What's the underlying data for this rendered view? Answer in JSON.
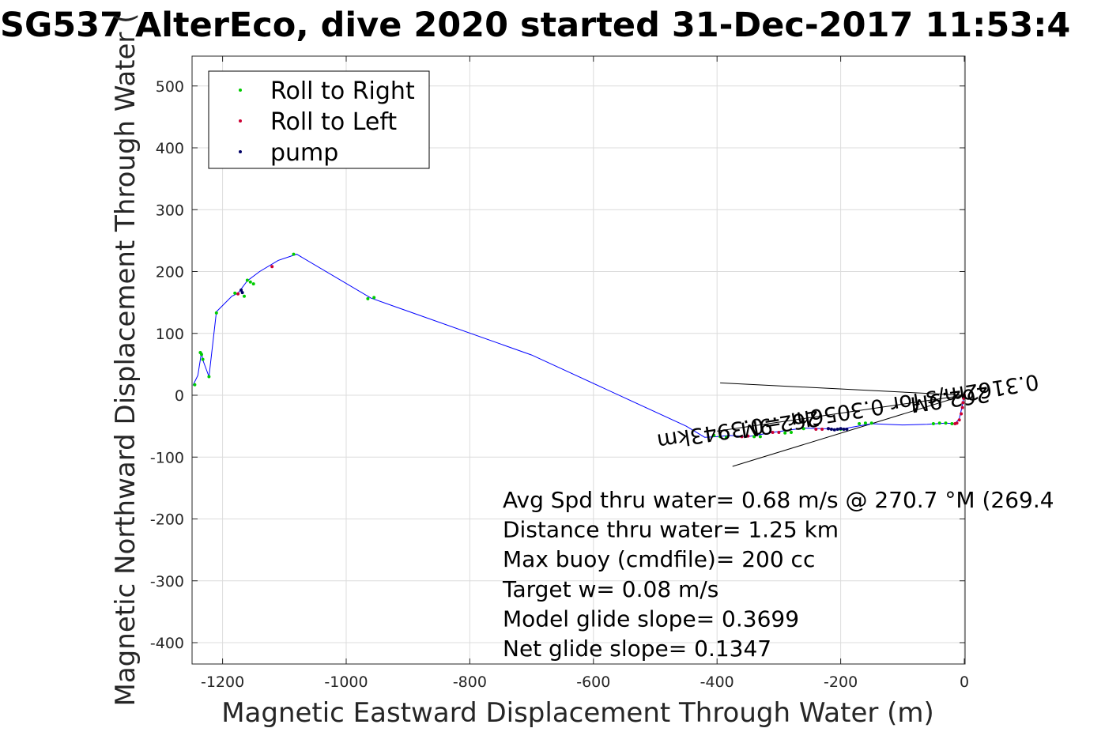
{
  "chart_data": {
    "type": "scatter",
    "title": "SG537 AlterEco, dive 2020 started 31-Dec-2017 11:53:4",
    "xlabel": "Magnetic Eastward Displacement Through Water (m)",
    "ylabel": "Magnetic Northward Displacement Through Water (",
    "xlim": [
      -1250,
      0
    ],
    "ylim": [
      -435,
      550
    ],
    "xticks": [
      -1200,
      -1000,
      -800,
      -600,
      -400,
      -200,
      0
    ],
    "yticks": [
      500,
      400,
      300,
      200,
      100,
      0,
      -100,
      -200,
      -300,
      -400
    ],
    "xtick_labels": [
      "-1200",
      "-1000",
      "-800",
      "-600",
      "-400",
      "-200",
      "0"
    ],
    "ytick_labels": [
      "500",
      "400",
      "300",
      "200",
      "100",
      "0",
      "-100",
      "-200",
      "-300",
      "-400"
    ],
    "grid": true,
    "legend_position": "top-left",
    "track": {
      "name": "track",
      "color": "#0000ff",
      "x": [
        0,
        -4,
        -8,
        -15,
        -30,
        -60,
        -100,
        -150,
        -200,
        -260,
        -310,
        -350,
        -380,
        -400,
        -420,
        -450,
        -700,
        -960,
        -1080,
        -1110,
        -1140,
        -1160,
        -1175,
        -1185,
        -1210,
        -1222,
        -1232,
        -1234,
        -1240,
        -1248
      ],
      "y": [
        0,
        -20,
        -38,
        -46,
        -45,
        -47,
        -48,
        -46,
        -55,
        -53,
        -60,
        -67,
        -65,
        -67,
        -68,
        -50,
        65,
        157,
        228,
        218,
        200,
        185,
        165,
        160,
        135,
        30,
        57,
        70,
        32,
        16
      ]
    },
    "series": [
      {
        "name": "Roll to Right",
        "color": "#00cc00",
        "x": [
          -20,
          -30,
          -40,
          -50,
          -150,
          -160,
          -170,
          -200,
          -260,
          -280,
          -290,
          -330,
          -340,
          -385,
          -395,
          -405,
          -955,
          -965,
          -1085,
          -1150,
          -1155,
          -1160,
          -1165,
          -1180,
          -1210,
          -1222,
          -1232,
          -1234,
          -1236,
          -1245
        ],
        "y": [
          -46,
          -45,
          -45,
          -46,
          -45,
          -45,
          -46,
          -55,
          -54,
          -60,
          -61,
          -67,
          -67,
          -68,
          -67,
          -65,
          158,
          156,
          228,
          180,
          183,
          186,
          160,
          165,
          133,
          30,
          58,
          66,
          69,
          17
        ]
      },
      {
        "name": "Roll to Left",
        "color": "#cc0033",
        "x": [
          0,
          -1,
          -2,
          -3,
          -5,
          -8,
          -12,
          -15,
          -220,
          -230,
          -240,
          -300,
          -310,
          -350,
          -360,
          -1120,
          -1175
        ],
        "y": [
          0,
          -5,
          -12,
          -20,
          -30,
          -40,
          -45,
          -46,
          -54,
          -55,
          -55,
          -60,
          -60,
          -66,
          -67,
          208,
          164
        ]
      },
      {
        "name": "pump",
        "color": "#000066",
        "x": [
          -190,
          -195,
          -200,
          -205,
          -210,
          -215,
          -220,
          -1168,
          -1170
        ],
        "y": [
          -55,
          -55,
          -54,
          -55,
          -56,
          -55,
          -54,
          166,
          170
        ]
      }
    ],
    "lines": [
      {
        "x": [
          0,
          -395
        ],
        "y": [
          0,
          20
        ]
      },
      {
        "x": [
          0,
          -400
        ],
        "y": [
          0,
          -58
        ]
      },
      {
        "x": [
          0,
          -375
        ],
        "y": [
          0,
          -115
        ]
      }
    ],
    "rotated_annotations": [
      {
        "text": "0.3162m/s for 0.3056hr =0.3943km",
        "anchor_x": -190,
        "anchor_y": -15,
        "rotation": 171
      },
      {
        "text": "262.9M",
        "anchor_x": -300,
        "anchor_y": -35,
        "rotation": 171
      },
      {
        "text": "262.9M",
        "anchor_x": -25,
        "anchor_y": 5,
        "rotation": 172
      }
    ],
    "annotations": [
      "Avg Spd thru water=  0.68 m/s @ 270.7 °M (269.4",
      "Distance thru water=  1.25 km",
      "Max buoy (cmdfile)= 200 cc",
      "Target w= 0.08 m/s",
      "Model glide slope= 0.3699",
      "Net glide slope= 0.1347"
    ]
  }
}
